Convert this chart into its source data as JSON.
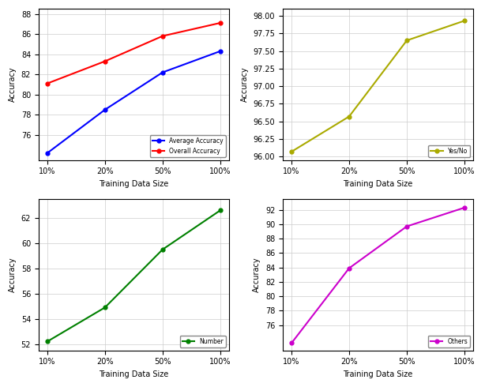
{
  "x_labels": [
    "10%",
    "20%",
    "50%",
    "100%"
  ],
  "x_values": [
    0,
    1,
    2,
    3
  ],
  "top_left": {
    "avg_accuracy": [
      74.2,
      78.5,
      82.2,
      84.3
    ],
    "overall_accuracy": [
      81.1,
      83.3,
      85.8,
      87.1
    ],
    "avg_color": "#0000ff",
    "overall_color": "#ff0000",
    "ylabel": "Accuracy",
    "xlabel": "Training Data Size",
    "legend": [
      "Average Accuracy",
      "Overall Accuracy"
    ],
    "yticks": [
      76,
      78,
      80,
      82,
      84,
      86,
      88
    ],
    "ylim": [
      73.5,
      88.5
    ]
  },
  "top_right": {
    "yes_no": [
      96.07,
      96.57,
      97.65,
      97.93
    ],
    "color": "#aaaa00",
    "ylabel": "Accuracy",
    "xlabel": "Training Data Size",
    "legend": [
      "Yes/No"
    ],
    "yticks": [
      96.0,
      96.25,
      96.5,
      96.75,
      97.0,
      97.25,
      97.5,
      97.75,
      98.0
    ],
    "ylim": [
      95.95,
      98.1
    ]
  },
  "bottom_left": {
    "number": [
      52.2,
      54.9,
      59.5,
      62.6
    ],
    "color": "#008000",
    "ylabel": "Accuracy",
    "xlabel": "Training Data Size",
    "legend": [
      "Number"
    ],
    "yticks": [
      52,
      54,
      56,
      58,
      60,
      62
    ],
    "ylim": [
      51.5,
      63.5
    ]
  },
  "bottom_right": {
    "others": [
      73.5,
      83.9,
      89.7,
      92.3
    ],
    "color": "#cc00cc",
    "ylabel": "Accuracy",
    "xlabel": "Training Data Size",
    "legend": [
      "Others"
    ],
    "yticks": [
      76,
      78,
      80,
      82,
      84,
      86,
      88,
      90,
      92
    ],
    "ylim": [
      72.5,
      93.5
    ]
  }
}
